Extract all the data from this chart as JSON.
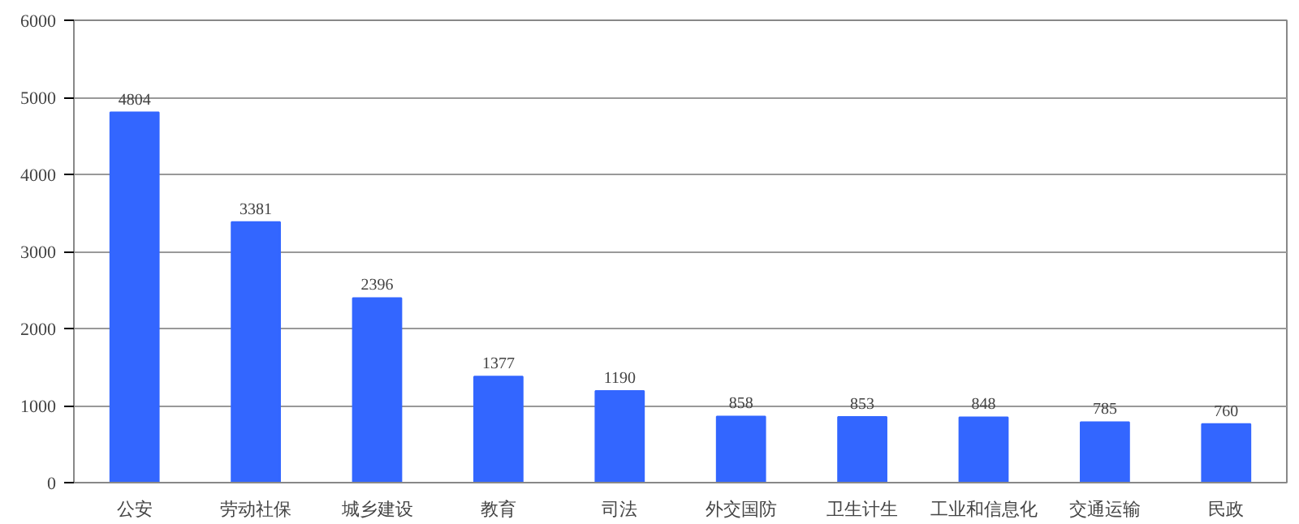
{
  "chart_data": {
    "type": "bar",
    "categories": [
      "公安",
      "劳动社保",
      "城乡建设",
      "教育",
      "司法",
      "外交国防",
      "卫生计生",
      "工业和信息化",
      "交通运输",
      "民政"
    ],
    "values": [
      4804,
      3381,
      2396,
      1377,
      1190,
      858,
      853,
      848,
      785,
      760
    ],
    "color": "#3366ff",
    "data_labels": true,
    "ylim": [
      0,
      6000
    ],
    "yticks": [
      0,
      1000,
      2000,
      3000,
      4000,
      5000,
      6000
    ],
    "grid": "y"
  }
}
